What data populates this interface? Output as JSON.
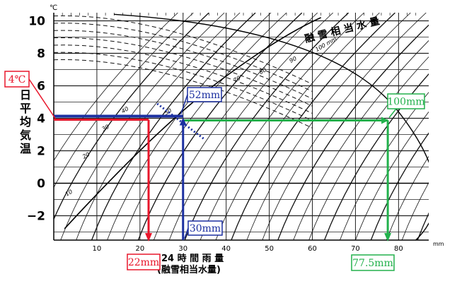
{
  "chart_data": {
    "type": "line",
    "units": {
      "y": "℃",
      "x": "mm"
    },
    "x_axis": {
      "label": "24 時 間 雨 量",
      "sublabel": "(融雪相当水量)",
      "ticks": [
        10,
        20,
        30,
        40,
        50,
        60,
        70,
        80
      ],
      "range": [
        0,
        87
      ]
    },
    "y_axis": {
      "label": [
        "日",
        "平",
        "均",
        "気",
        "温"
      ],
      "ticks": [
        10,
        8,
        6,
        4,
        2,
        0,
        -2
      ],
      "range": [
        -3.5,
        10.5
      ]
    },
    "grid": true,
    "diagonal_label": "融 雪 相 当 水 量",
    "iso_lines": [
      {
        "label": "10",
        "label_x": 3,
        "label_y": -0.8
      },
      {
        "label": "20",
        "label_x": 7,
        "label_y": 1.5
      },
      {
        "label": "30",
        "label_x": 11.5,
        "label_y": 3.2
      },
      {
        "label": "40",
        "label_x": 16,
        "label_y": 4.3
      },
      {
        "label": "50",
        "label_x": 26,
        "label_y": 4.2
      },
      {
        "label": "60",
        "label_x": 35,
        "label_y": 5.2
      },
      {
        "label": "70",
        "label_x": 42,
        "label_y": 6.2
      },
      {
        "label": "80",
        "label_x": 48,
        "label_y": 6.7
      },
      {
        "label": "90",
        "label_x": 55,
        "label_y": 7.4
      },
      {
        "label": "100 mm",
        "label_x": 61,
        "label_y": 8.1
      }
    ],
    "annotations": {
      "temp": {
        "label": "4℃",
        "value": 4
      },
      "red": {
        "label": "22mm",
        "value": 22
      },
      "blue_top": {
        "label": "52mm",
        "value": 52
      },
      "blue_bottom": {
        "label": "30mm",
        "value": 30
      },
      "green_top": {
        "label": "100mm",
        "value": 100
      },
      "green_bottom": {
        "label": "77.5mm",
        "value": 77.5
      }
    },
    "colors": {
      "red": "#e8162b",
      "blue": "#1b2fa0",
      "green": "#22b14c",
      "grid": "#000000"
    }
  }
}
